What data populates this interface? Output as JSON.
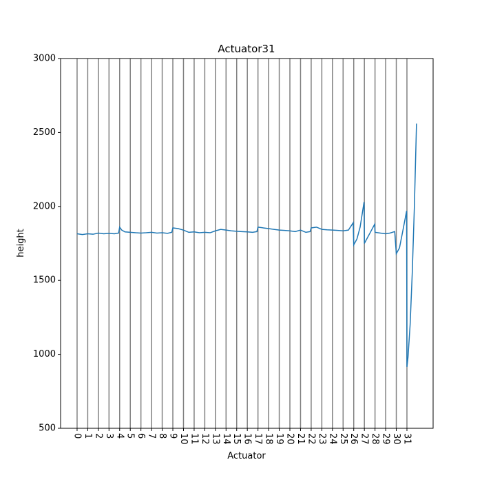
{
  "chart_data": {
    "type": "line",
    "title": "Actuator31",
    "x_label": "Actuator",
    "y_label": "height",
    "x": [
      0,
      0.5,
      1,
      1.5,
      2,
      2.5,
      3,
      3.5,
      3.9,
      4,
      4.2,
      4.5,
      5,
      5.5,
      6,
      6.5,
      7,
      7.5,
      8,
      8.5,
      8.9,
      9,
      9.5,
      10,
      10.5,
      11,
      11.5,
      12,
      12.5,
      13,
      13.5,
      14,
      14.5,
      15,
      15.5,
      16,
      16.5,
      16.9,
      17,
      17.5,
      18,
      18.5,
      19,
      19.5,
      20,
      20.5,
      21,
      21.5,
      21.9,
      22,
      22.5,
      23,
      23.5,
      24,
      24.5,
      25,
      25.5,
      25.95,
      26,
      26.3,
      26.6,
      26.97,
      27,
      27.3,
      27.6,
      27.97,
      28,
      28.5,
      29,
      29.4,
      29.85,
      30,
      30.3,
      30.6,
      30.97,
      31,
      31.1,
      31.3,
      31.5,
      31.7,
      31.9
    ],
    "values": [
      1815,
      1810,
      1815,
      1812,
      1820,
      1815,
      1818,
      1815,
      1820,
      1860,
      1840,
      1828,
      1825,
      1822,
      1820,
      1822,
      1825,
      1820,
      1822,
      1818,
      1825,
      1855,
      1850,
      1840,
      1825,
      1828,
      1822,
      1825,
      1822,
      1835,
      1845,
      1840,
      1835,
      1832,
      1830,
      1828,
      1825,
      1830,
      1860,
      1855,
      1850,
      1845,
      1840,
      1838,
      1835,
      1830,
      1840,
      1825,
      1830,
      1855,
      1860,
      1845,
      1842,
      1840,
      1838,
      1835,
      1840,
      1890,
      1740,
      1780,
      1860,
      2030,
      1750,
      1790,
      1830,
      1880,
      1825,
      1820,
      1815,
      1820,
      1830,
      1680,
      1720,
      1830,
      1970,
      915,
      980,
      1200,
      1550,
      2000,
      2560
    ],
    "color": "#1f77b4",
    "xlim": [
      -1.55,
      33.46
    ],
    "ylim": [
      500,
      3000
    ],
    "xticks": [
      0,
      1,
      2,
      3,
      4,
      5,
      6,
      7,
      8,
      9,
      10,
      11,
      12,
      13,
      14,
      15,
      16,
      17,
      18,
      19,
      20,
      21,
      22,
      23,
      24,
      25,
      26,
      27,
      28,
      29,
      30,
      31
    ],
    "yticks": [
      500,
      1000,
      1500,
      2000,
      2500,
      3000
    ],
    "vertical_lines_at_xticks": true,
    "vertical_line_color": "#808080"
  }
}
